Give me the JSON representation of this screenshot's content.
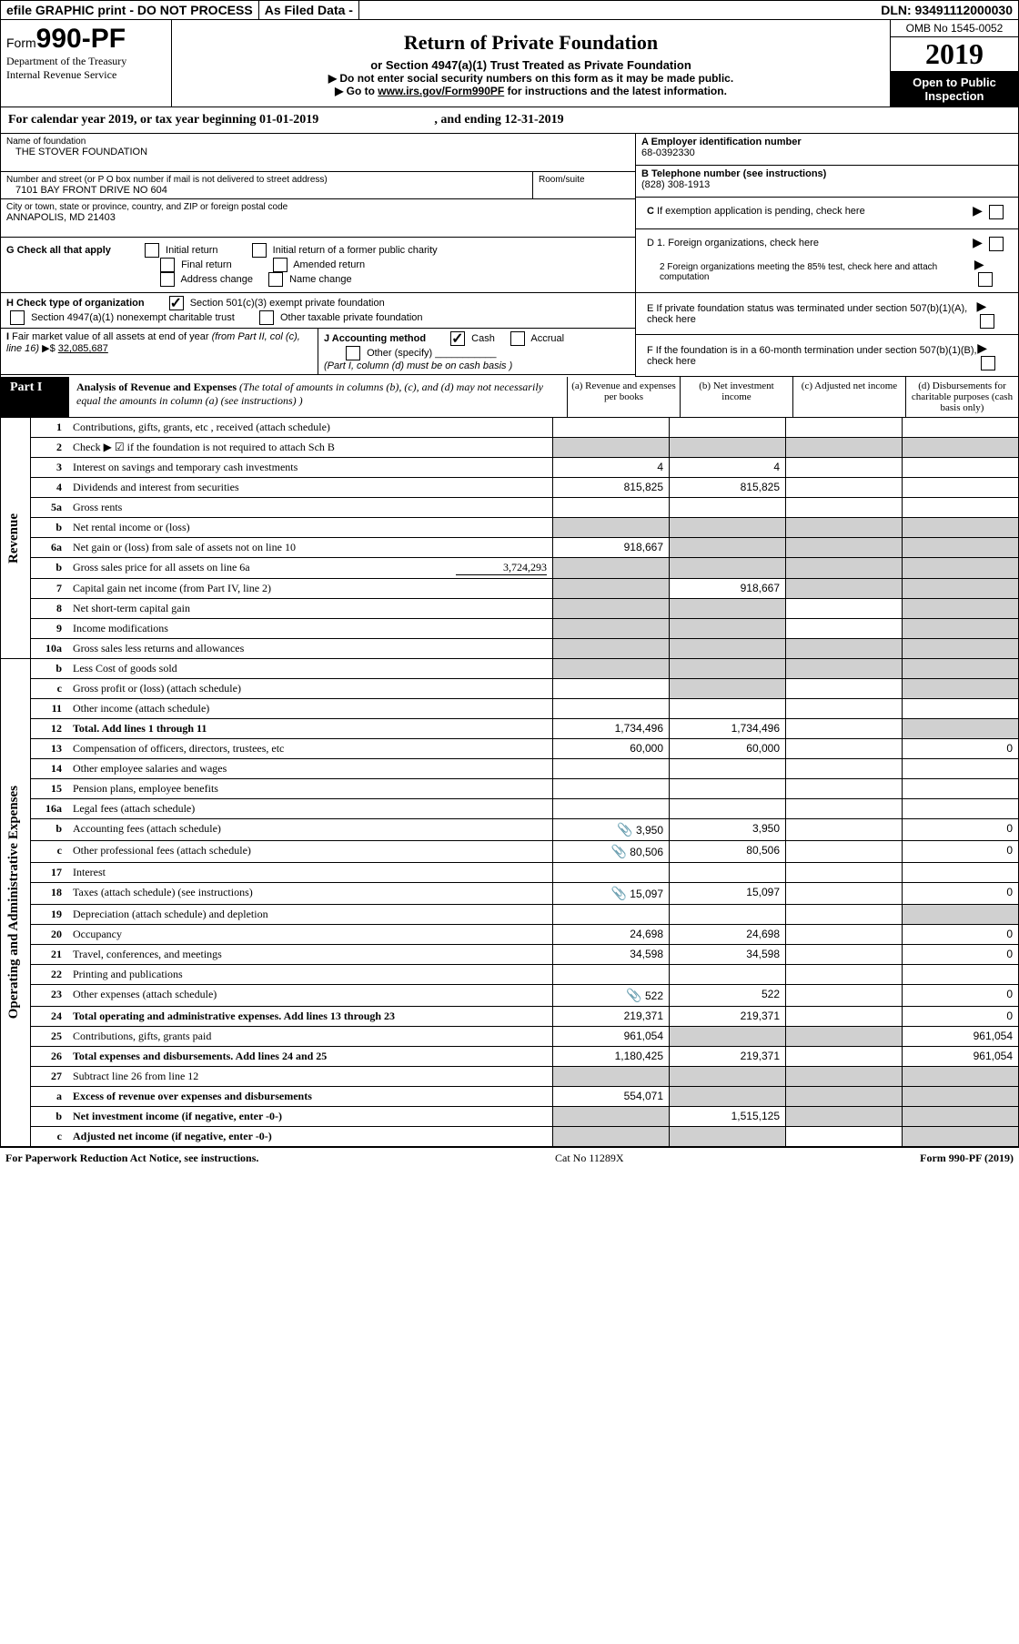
{
  "topbar": {
    "efile": "efile GRAPHIC print - DO NOT PROCESS",
    "asfiled": "As Filed Data -",
    "dln": "DLN: 93491112000030"
  },
  "header": {
    "form_word": "Form",
    "form_number": "990-PF",
    "dept1": "Department of the Treasury",
    "dept2": "Internal Revenue Service",
    "title": "Return of Private Foundation",
    "subtitle": "or Section 4947(a)(1) Trust Treated as Private Foundation",
    "note1": "▶ Do not enter social security numbers on this form as it may be made public.",
    "note2_prefix": "▶ Go to ",
    "note2_link": "www.irs.gov/Form990PF",
    "note2_suffix": " for instructions and the latest information.",
    "omb": "OMB No  1545-0052",
    "year": "2019",
    "open": "Open to Public Inspection"
  },
  "calyear": {
    "text": "For calendar year 2019, or tax year beginning 01-01-2019",
    "ending": ", and ending 12-31-2019"
  },
  "info": {
    "name_label": "Name of foundation",
    "name": "THE STOVER FOUNDATION",
    "addr_label": "Number and street (or P O  box number if mail is not delivered to street address)",
    "addr": "7101 BAY FRONT DRIVE NO 604",
    "room_label": "Room/suite",
    "city_label": "City or town, state or province, country, and ZIP or foreign postal code",
    "city": "ANNAPOLIS, MD  21403",
    "a_label": "A Employer identification number",
    "a_val": "68-0392330",
    "b_label": "B Telephone number (see instructions)",
    "b_val": "(828) 308-1913",
    "c_label": "C  If exemption application is pending, check here",
    "d1": "D 1. Foreign organizations, check here",
    "d2": "2  Foreign organizations meeting the 85% test, check here and attach computation",
    "e_label": "E  If private foundation status was terminated under section 507(b)(1)(A), check here",
    "f_label": "F  If the foundation is in a 60-month termination under section 507(b)(1)(B), check here"
  },
  "g": {
    "label": "G Check all that apply",
    "opt1": "Initial return",
    "opt2": "Initial return of a former public charity",
    "opt3": "Final return",
    "opt4": "Amended return",
    "opt5": "Address change",
    "opt6": "Name change"
  },
  "h": {
    "label": "H Check type of organization",
    "opt1": "Section 501(c)(3) exempt private foundation",
    "opt2": "Section 4947(a)(1) nonexempt charitable trust",
    "opt3": "Other taxable private foundation"
  },
  "i": {
    "label": "I Fair market value of all assets at end of year (from Part II, col  (c), line 16) ▶$",
    "val": "32,085,687"
  },
  "j": {
    "label": "J Accounting method",
    "cash": "Cash",
    "accrual": "Accrual",
    "other": "Other (specify)",
    "note": "(Part I, column (d) must be on cash basis )"
  },
  "part1": {
    "label": "Part I",
    "title": "Analysis of Revenue and Expenses",
    "subtitle": " (The total of amounts in columns (b), (c), and (d) may not necessarily equal the amounts in column (a) (see instructions) )",
    "col_a": "(a)   Revenue and expenses per books",
    "col_b": "(b)   Net investment income",
    "col_c": "(c)  Adjusted net income",
    "col_d": "(d)  Disbursements for charitable purposes (cash basis only)"
  },
  "side": {
    "revenue": "Revenue",
    "expenses": "Operating and Administrative Expenses"
  },
  "rows": [
    {
      "n": "1",
      "d": "Contributions, gifts, grants, etc , received (attach schedule)",
      "a": "",
      "b": "",
      "c": "",
      "e": ""
    },
    {
      "n": "2",
      "d": "Check ▶ ☑ if the foundation is not required to attach Sch  B",
      "a": "",
      "b": "",
      "c": "",
      "e": "",
      "grey_all": true
    },
    {
      "n": "3",
      "d": "Interest on savings and temporary cash investments",
      "a": "4",
      "b": "4",
      "c": "",
      "e": ""
    },
    {
      "n": "4",
      "d": "Dividends and interest from securities",
      "a": "815,825",
      "b": "815,825",
      "c": "",
      "e": ""
    },
    {
      "n": "5a",
      "d": "Gross rents",
      "a": "",
      "b": "",
      "c": "",
      "e": ""
    },
    {
      "n": "b",
      "d": "Net rental income or (loss)",
      "grey_all": true
    },
    {
      "n": "6a",
      "d": "Net gain or (loss) from sale of assets not on line 10",
      "a": "918,667",
      "grey_bcd": true
    },
    {
      "n": "b",
      "d": "Gross sales price for all assets on line 6a",
      "tail": "3,724,293",
      "grey_all": true
    },
    {
      "n": "7",
      "d": "Capital gain net income (from Part IV, line 2)",
      "grey_a": true,
      "b": "918,667",
      "grey_cd": true
    },
    {
      "n": "8",
      "d": "Net short-term capital gain",
      "grey_ab": true,
      "c": "",
      "grey_d": true
    },
    {
      "n": "9",
      "d": "Income modifications",
      "grey_ab": true,
      "c": "",
      "grey_d": true
    },
    {
      "n": "10a",
      "d": "Gross sales less returns and allowances",
      "grey_all": true
    },
    {
      "n": "b",
      "d": "Less   Cost of goods sold",
      "grey_all": true
    },
    {
      "n": "c",
      "d": "Gross profit or (loss) (attach schedule)",
      "a": "",
      "grey_b": true,
      "c": "",
      "grey_d": true
    },
    {
      "n": "11",
      "d": "Other income (attach schedule)",
      "a": "",
      "b": "",
      "c": "",
      "e": ""
    },
    {
      "n": "12",
      "d": "Total. Add lines 1 through 11",
      "bold": true,
      "a": "1,734,496",
      "b": "1,734,496",
      "c": "",
      "grey_d": true
    },
    {
      "n": "13",
      "d": "Compensation of officers, directors, trustees, etc",
      "a": "60,000",
      "b": "60,000",
      "c": "",
      "e": "0"
    },
    {
      "n": "14",
      "d": "Other employee salaries and wages",
      "a": "",
      "b": "",
      "c": "",
      "e": ""
    },
    {
      "n": "15",
      "d": "Pension plans, employee benefits",
      "a": "",
      "b": "",
      "c": "",
      "e": ""
    },
    {
      "n": "16a",
      "d": "Legal fees (attach schedule)",
      "a": "",
      "b": "",
      "c": "",
      "e": ""
    },
    {
      "n": "b",
      "d": "Accounting fees (attach schedule)",
      "clip": true,
      "a": "3,950",
      "b": "3,950",
      "c": "",
      "e": "0"
    },
    {
      "n": "c",
      "d": "Other professional fees (attach schedule)",
      "clip": true,
      "a": "80,506",
      "b": "80,506",
      "c": "",
      "e": "0"
    },
    {
      "n": "17",
      "d": "Interest",
      "a": "",
      "b": "",
      "c": "",
      "e": ""
    },
    {
      "n": "18",
      "d": "Taxes (attach schedule) (see instructions)",
      "clip": true,
      "a": "15,097",
      "b": "15,097",
      "c": "",
      "e": "0"
    },
    {
      "n": "19",
      "d": "Depreciation (attach schedule) and depletion",
      "a": "",
      "b": "",
      "c": "",
      "grey_d": true
    },
    {
      "n": "20",
      "d": "Occupancy",
      "a": "24,698",
      "b": "24,698",
      "c": "",
      "e": "0"
    },
    {
      "n": "21",
      "d": "Travel, conferences, and meetings",
      "a": "34,598",
      "b": "34,598",
      "c": "",
      "e": "0"
    },
    {
      "n": "22",
      "d": "Printing and publications",
      "a": "",
      "b": "",
      "c": "",
      "e": ""
    },
    {
      "n": "23",
      "d": "Other expenses (attach schedule)",
      "clip": true,
      "a": "522",
      "b": "522",
      "c": "",
      "e": "0"
    },
    {
      "n": "24",
      "d": "Total operating and administrative expenses. Add lines 13 through 23",
      "bold": true,
      "a": "219,371",
      "b": "219,371",
      "c": "",
      "e": "0"
    },
    {
      "n": "25",
      "d": "Contributions, gifts, grants paid",
      "a": "961,054",
      "grey_bc": true,
      "e": "961,054"
    },
    {
      "n": "26",
      "d": "Total expenses and disbursements. Add lines 24 and 25",
      "bold": true,
      "a": "1,180,425",
      "b": "219,371",
      "c": "",
      "e": "961,054"
    },
    {
      "n": "27",
      "d": "Subtract line 26 from line 12",
      "grey_all": true
    },
    {
      "n": "a",
      "d": "Excess of revenue over expenses and disbursements",
      "bold": true,
      "a": "554,071",
      "grey_bcd": true
    },
    {
      "n": "b",
      "d": "Net investment income (if negative, enter -0-)",
      "bold": true,
      "grey_a": true,
      "b": "1,515,125",
      "grey_cd": true
    },
    {
      "n": "c",
      "d": "Adjusted net income (if negative, enter -0-)",
      "bold": true,
      "grey_ab": true,
      "c": "",
      "grey_d": true
    }
  ],
  "footer": {
    "left": "For Paperwork Reduction Act Notice, see instructions.",
    "mid": "Cat  No  11289X",
    "right": "Form 990-PF (2019)"
  }
}
